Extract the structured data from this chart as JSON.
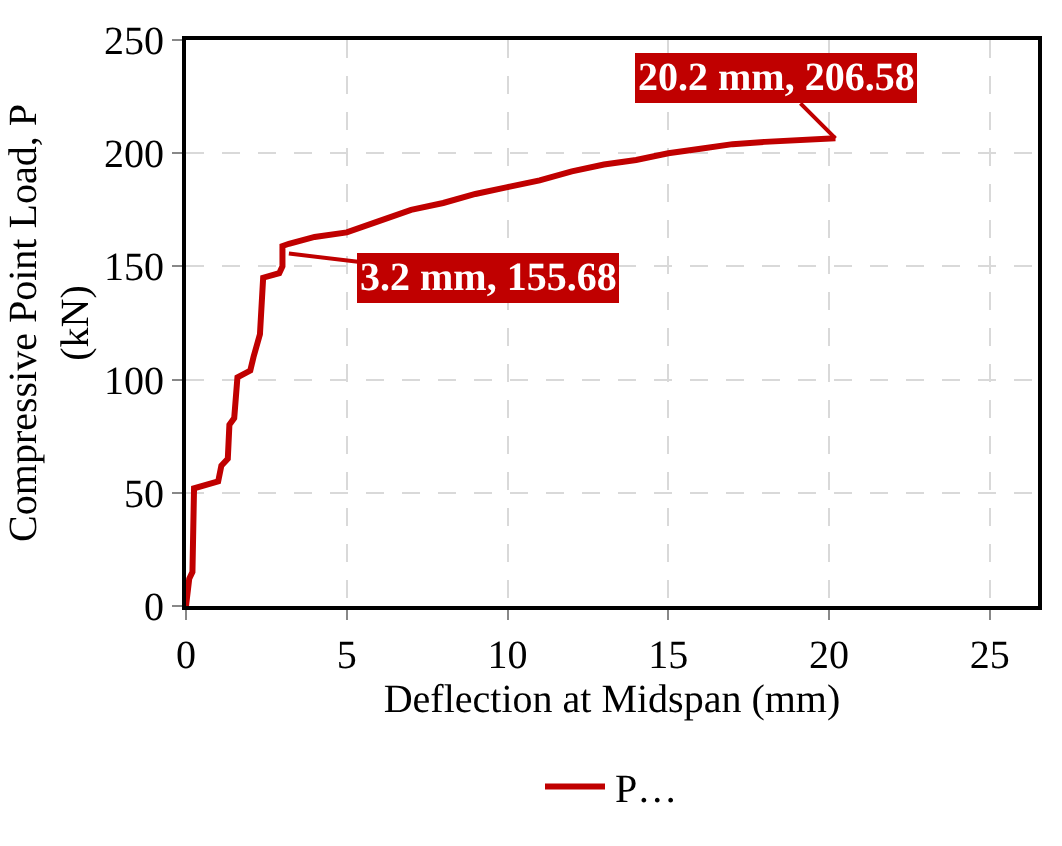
{
  "chart_data": {
    "type": "line",
    "xlabel": "Deflection at Midspan (mm)",
    "ylabel": "Compressive Point Load, P (kN)",
    "xlim": [
      0,
      26.5
    ],
    "xticks": [
      0,
      5,
      10,
      15,
      20,
      25
    ],
    "ylim": [
      0,
      250
    ],
    "yticks": [
      0,
      50,
      100,
      150,
      200,
      250
    ],
    "grid": true,
    "legend": "bottom",
    "marker": "none",
    "line_style": "solid",
    "series": [
      {
        "name": "P…",
        "color": "#c00000",
        "x": [
          0,
          0.1,
          0.2,
          0.25,
          1.0,
          1.1,
          1.3,
          1.35,
          1.5,
          1.6,
          2.0,
          2.1,
          2.3,
          2.4,
          2.9,
          3.0,
          3.0,
          3.2,
          4,
          5,
          6,
          7,
          8,
          9,
          10,
          11,
          12,
          13,
          14,
          15,
          16,
          17,
          18,
          20.2
        ],
        "values": [
          0,
          12,
          15,
          52,
          55,
          62,
          65,
          80,
          83,
          101,
          104,
          110,
          120,
          145,
          147,
          150,
          159,
          160,
          163,
          165,
          170,
          175,
          178,
          182,
          185,
          188,
          192,
          195,
          197,
          200,
          202,
          204,
          205,
          206.58
        ]
      }
    ],
    "annotations": [
      {
        "text": "3.2 mm, 155.68",
        "x": 3.2,
        "y": 155.68
      },
      {
        "text": "20.2 mm, 206.58",
        "x": 20.2,
        "y": 206.58
      }
    ]
  }
}
